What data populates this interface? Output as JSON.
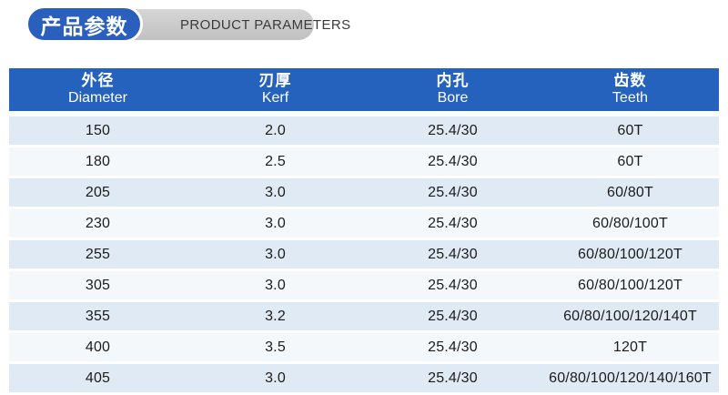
{
  "title": {
    "zh": "产品参数",
    "en": "PRODUCT PARAMETERS"
  },
  "colors": {
    "header_blue": "#2562bd",
    "pill_blue": "#2b5fbd",
    "pill_gray": "#c9c9c9",
    "row_light": "#f4f8fb",
    "row_tint": "#dfeaf4",
    "cell_text": "#1c1c1c"
  },
  "table": {
    "columns": [
      {
        "zh": "外径",
        "en": "Diameter"
      },
      {
        "zh": "刃厚",
        "en": "Kerf"
      },
      {
        "zh": "内孔",
        "en": "Bore"
      },
      {
        "zh": "齿数",
        "en": "Teeth"
      }
    ],
    "rows": [
      {
        "diameter": "150",
        "kerf": "2.0",
        "bore": "25.4/30",
        "teeth": "60T"
      },
      {
        "diameter": "180",
        "kerf": "2.5",
        "bore": "25.4/30",
        "teeth": "60T"
      },
      {
        "diameter": "205",
        "kerf": "3.0",
        "bore": "25.4/30",
        "teeth": "60/80T"
      },
      {
        "diameter": "230",
        "kerf": "3.0",
        "bore": "25.4/30",
        "teeth": "60/80/100T"
      },
      {
        "diameter": "255",
        "kerf": "3.0",
        "bore": "25.4/30",
        "teeth": "60/80/100/120T"
      },
      {
        "diameter": "305",
        "kerf": "3.0",
        "bore": "25.4/30",
        "teeth": "60/80/100/120T"
      },
      {
        "diameter": "355",
        "kerf": "3.2",
        "bore": "25.4/30",
        "teeth": "60/80/100/120/140T"
      },
      {
        "diameter": "400",
        "kerf": "3.5",
        "bore": "25.4/30",
        "teeth": "120T"
      },
      {
        "diameter": "405",
        "kerf": "3.0",
        "bore": "25.4/30",
        "teeth": "60/80/100/120/140/160T"
      }
    ]
  },
  "chart_data": {
    "type": "table",
    "title": "产品参数 / PRODUCT PARAMETERS",
    "columns": [
      "外径 Diameter",
      "刃厚 Kerf",
      "内孔 Bore",
      "齿数 Teeth"
    ],
    "rows": [
      [
        "150",
        "2.0",
        "25.4/30",
        "60T"
      ],
      [
        "180",
        "2.5",
        "25.4/30",
        "60T"
      ],
      [
        "205",
        "3.0",
        "25.4/30",
        "60/80T"
      ],
      [
        "230",
        "3.0",
        "25.4/30",
        "60/80/100T"
      ],
      [
        "255",
        "3.0",
        "25.4/30",
        "60/80/100/120T"
      ],
      [
        "305",
        "3.0",
        "25.4/30",
        "60/80/100/120T"
      ],
      [
        "355",
        "3.2",
        "25.4/30",
        "60/80/100/120/140T"
      ],
      [
        "400",
        "3.5",
        "25.4/30",
        "120T"
      ],
      [
        "405",
        "3.0",
        "25.4/30",
        "60/80/100/120/140/160T"
      ]
    ]
  }
}
